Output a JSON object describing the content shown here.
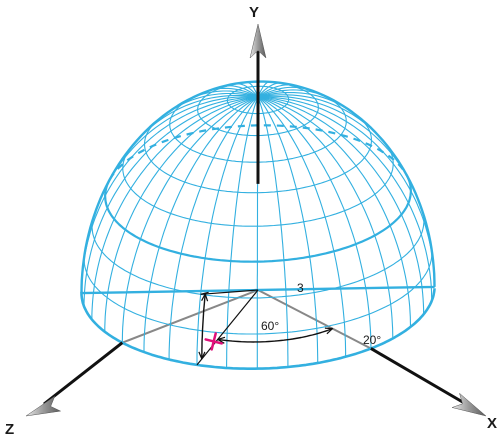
{
  "axes": {
    "x_label": "X",
    "y_label": "Y",
    "z_label": "Z"
  },
  "dimensions": {
    "radius_label": "3",
    "azimuth_label": "60°",
    "elevation_label": "20°"
  },
  "sphere": {
    "meridian_count": 36,
    "parallel_step_degrees": 10
  },
  "colors": {
    "wireframe": "#33b0e0",
    "axis": "#111111",
    "axis_hidden": "#888888",
    "point_marker": "#e0107a",
    "dimension": "#111111"
  }
}
